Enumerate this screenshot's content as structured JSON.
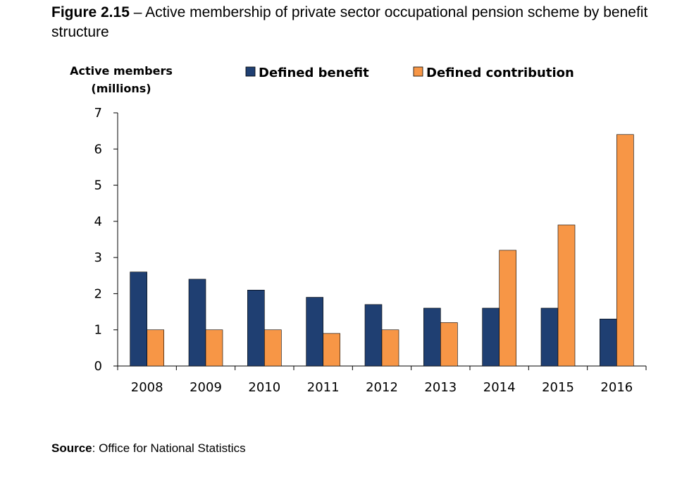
{
  "figure": {
    "label": "Figure 2.15",
    "separator": " – ",
    "title": "Active membership of private sector occupational pension scheme by benefit structure"
  },
  "source": {
    "label": "Source",
    "text": ": Office for National Statistics"
  },
  "chart_data": {
    "type": "bar",
    "title": "",
    "xlabel": "",
    "ylabel": [
      "Active members",
      "(millions)"
    ],
    "categories": [
      "2008",
      "2009",
      "2010",
      "2011",
      "2012",
      "2013",
      "2014",
      "2015",
      "2016"
    ],
    "series": [
      {
        "name": "Defined benefit",
        "color": "#1f3f72",
        "values": [
          2.6,
          2.4,
          2.1,
          1.9,
          1.7,
          1.6,
          1.6,
          1.6,
          1.3
        ]
      },
      {
        "name": "Defined contribution",
        "color": "#f79646",
        "values": [
          1.0,
          1.0,
          1.0,
          0.9,
          1.0,
          1.2,
          3.2,
          3.9,
          6.4
        ]
      }
    ],
    "ylim": [
      0,
      7
    ],
    "yticks": [
      0,
      1,
      2,
      3,
      4,
      5,
      6,
      7
    ],
    "grid": false,
    "legend_position": "top"
  }
}
